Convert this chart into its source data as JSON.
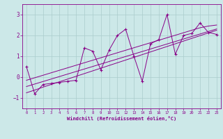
{
  "xlabel": "Windchill (Refroidissement éolien,°C)",
  "background_color": "#cce8e8",
  "grid_color": "#aacccc",
  "line_color": "#880088",
  "x_data": [
    0,
    1,
    2,
    3,
    4,
    5,
    6,
    7,
    8,
    9,
    10,
    11,
    12,
    13,
    14,
    15,
    16,
    17,
    18,
    19,
    20,
    21,
    22,
    23
  ],
  "y_scatter": [
    0.5,
    -0.8,
    -0.35,
    -0.3,
    -0.25,
    -0.2,
    -0.15,
    1.4,
    1.25,
    0.35,
    1.3,
    2.0,
    2.3,
    1.0,
    -0.2,
    1.6,
    1.8,
    3.0,
    1.1,
    2.0,
    2.1,
    2.6,
    2.15,
    2.05
  ],
  "y_line1": [
    -0.75,
    -0.62,
    -0.48,
    -0.35,
    -0.22,
    -0.09,
    0.04,
    0.17,
    0.3,
    0.43,
    0.56,
    0.69,
    0.82,
    0.95,
    1.08,
    1.21,
    1.34,
    1.47,
    1.6,
    1.73,
    1.86,
    1.99,
    2.12,
    2.25
  ],
  "y_line2": [
    -0.45,
    -0.33,
    -0.21,
    -0.09,
    0.03,
    0.15,
    0.27,
    0.39,
    0.51,
    0.63,
    0.75,
    0.87,
    0.99,
    1.11,
    1.23,
    1.35,
    1.47,
    1.59,
    1.71,
    1.83,
    1.95,
    2.07,
    2.19,
    2.31
  ],
  "y_line3": [
    -0.15,
    -0.03,
    0.09,
    0.21,
    0.33,
    0.45,
    0.57,
    0.69,
    0.81,
    0.93,
    1.05,
    1.17,
    1.29,
    1.41,
    1.53,
    1.65,
    1.77,
    1.89,
    2.01,
    2.13,
    2.25,
    2.37,
    2.45,
    2.5
  ],
  "xlim": [
    -0.5,
    23.5
  ],
  "ylim": [
    -1.5,
    3.5
  ],
  "yticks": [
    -1,
    0,
    1,
    2,
    3
  ],
  "xticks": [
    0,
    1,
    2,
    3,
    4,
    5,
    6,
    7,
    8,
    9,
    10,
    11,
    12,
    13,
    14,
    15,
    16,
    17,
    18,
    19,
    20,
    21,
    22,
    23
  ]
}
